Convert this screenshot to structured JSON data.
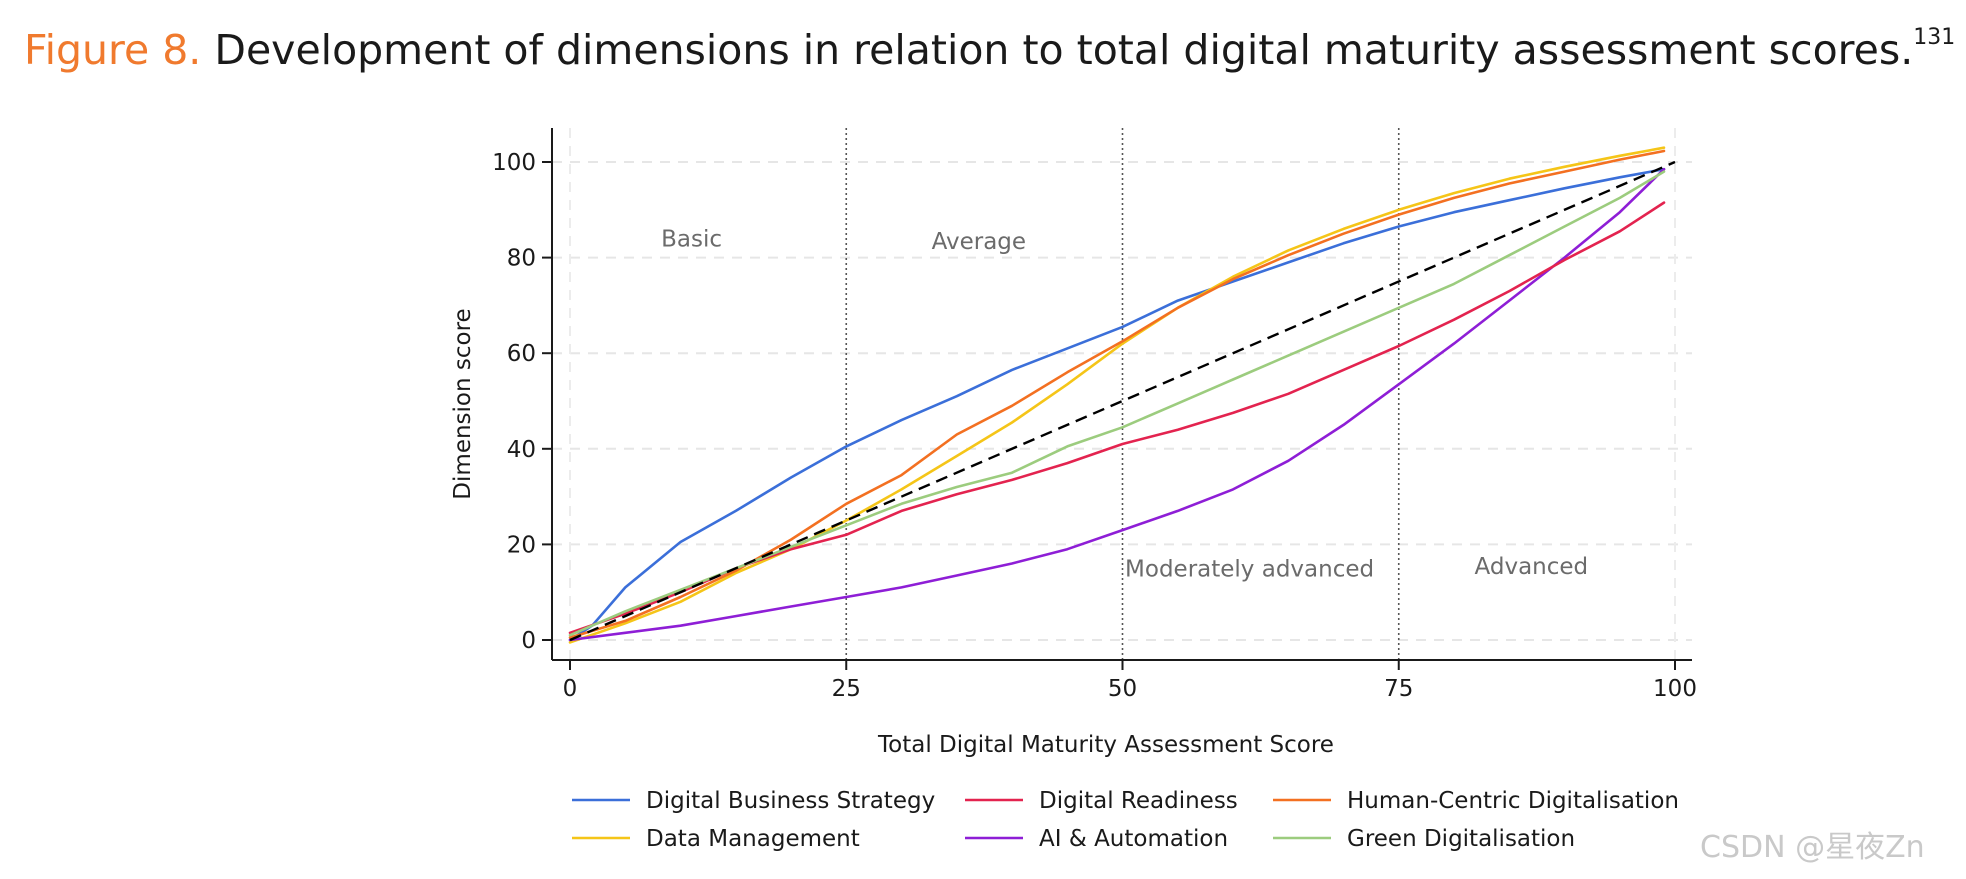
{
  "figure": {
    "label": "Figure 8.",
    "text": "Development of dimensions in relation to total digital maturity assessment scores.",
    "ref": "131"
  },
  "watermark": "CSDN @星夜Zn",
  "colors": {
    "accent": "#f07a2e"
  },
  "chart_data": {
    "type": "line",
    "xlabel": "Total Digital Maturity Assessment Score",
    "ylabel": "Dimension score",
    "xlim": [
      0,
      100
    ],
    "ylim": [
      -4,
      107
    ],
    "xticks": [
      0,
      25,
      50,
      75,
      100
    ],
    "yticks": [
      0,
      20,
      40,
      60,
      80,
      100
    ],
    "grid": true,
    "legend_position": "bottom",
    "vlines": [
      25,
      50,
      75
    ],
    "regions": [
      {
        "label": "Basic",
        "x": 11,
        "y": 84
      },
      {
        "label": "Average",
        "x": 37,
        "y": 83.5
      },
      {
        "label": "Moderately advanced",
        "x": 61.5,
        "y": 15
      },
      {
        "label": "Advanced",
        "x": 87,
        "y": 15.5
      }
    ],
    "reference": {
      "name": "",
      "style": "dashed",
      "color": "#000000",
      "x": [
        0,
        100
      ],
      "y": [
        0,
        100
      ]
    },
    "series": [
      {
        "name": "Digital Business Strategy",
        "color": "#3b6fd9",
        "x": [
          0,
          2,
          5,
          10,
          15,
          20,
          25,
          30,
          35,
          40,
          45,
          50,
          55,
          60,
          65,
          70,
          75,
          80,
          85,
          90,
          95,
          99
        ],
        "y": [
          0,
          3,
          11,
          20.5,
          27,
          34,
          40.5,
          46,
          51,
          56.5,
          61,
          65.5,
          71,
          75,
          79,
          83,
          86.5,
          89.5,
          92,
          94.5,
          96.8,
          98.5
        ]
      },
      {
        "name": "Data Management",
        "color": "#f5c518",
        "x": [
          0,
          5,
          10,
          15,
          20,
          25,
          30,
          35,
          40,
          45,
          50,
          55,
          60,
          65,
          70,
          75,
          80,
          85,
          90,
          95,
          99
        ],
        "y": [
          -0.5,
          3.5,
          8,
          14,
          19,
          25,
          31.5,
          38.5,
          45.5,
          53.5,
          62,
          69.5,
          76,
          81.5,
          86,
          90,
          93.5,
          96.5,
          99,
          101.3,
          103
        ]
      },
      {
        "name": "AI & Automation",
        "color": "#8e1ed6",
        "x": [
          0,
          5,
          10,
          15,
          20,
          25,
          30,
          35,
          40,
          45,
          50,
          55,
          60,
          65,
          70,
          75,
          80,
          85,
          90,
          95,
          99
        ],
        "y": [
          0,
          1.5,
          3,
          5,
          7,
          9,
          11,
          13.5,
          16,
          19,
          23,
          27,
          31.5,
          37.5,
          45,
          53.5,
          62,
          71,
          80,
          89.5,
          98.5
        ]
      },
      {
        "name": "Digital Readiness",
        "color": "#e3234f",
        "x": [
          0,
          5,
          10,
          15,
          20,
          25,
          30,
          35,
          40,
          45,
          50,
          55,
          60,
          65,
          70,
          75,
          80,
          85,
          90,
          95,
          99
        ],
        "y": [
          1.5,
          5.5,
          10,
          15,
          19,
          22,
          27,
          30.5,
          33.5,
          37,
          41,
          44,
          47.5,
          51.5,
          56.5,
          61.5,
          67,
          73,
          79.5,
          85.5,
          91.5
        ]
      },
      {
        "name": "Human-Centric Digitalisation",
        "color": "#f37021",
        "x": [
          0,
          5,
          10,
          15,
          20,
          25,
          30,
          35,
          40,
          45,
          50,
          55,
          60,
          65,
          70,
          75,
          80,
          85,
          90,
          95,
          99
        ],
        "y": [
          0.5,
          4,
          9,
          14.5,
          21,
          28.5,
          34.5,
          43,
          49,
          56,
          62.5,
          69.5,
          75.5,
          80.5,
          85,
          89,
          92.5,
          95.5,
          98,
          100.5,
          102.3
        ]
      },
      {
        "name": "Green Digitalisation",
        "color": "#9ccc7e",
        "x": [
          0,
          5,
          10,
          15,
          20,
          25,
          30,
          35,
          40,
          45,
          50,
          55,
          60,
          65,
          70,
          75,
          80,
          85,
          90,
          95,
          99
        ],
        "y": [
          1,
          6,
          10.5,
          15,
          19.5,
          24,
          28.5,
          32,
          35,
          40.5,
          44.5,
          49.5,
          54.5,
          59.5,
          64.5,
          69.5,
          74.5,
          80.5,
          86.5,
          92.5,
          98
        ]
      }
    ],
    "legend_order": [
      "Digital Business Strategy",
      "Digital Readiness",
      "Human-Centric Digitalisation",
      "Data Management",
      "AI & Automation",
      "Green Digitalisation"
    ]
  }
}
